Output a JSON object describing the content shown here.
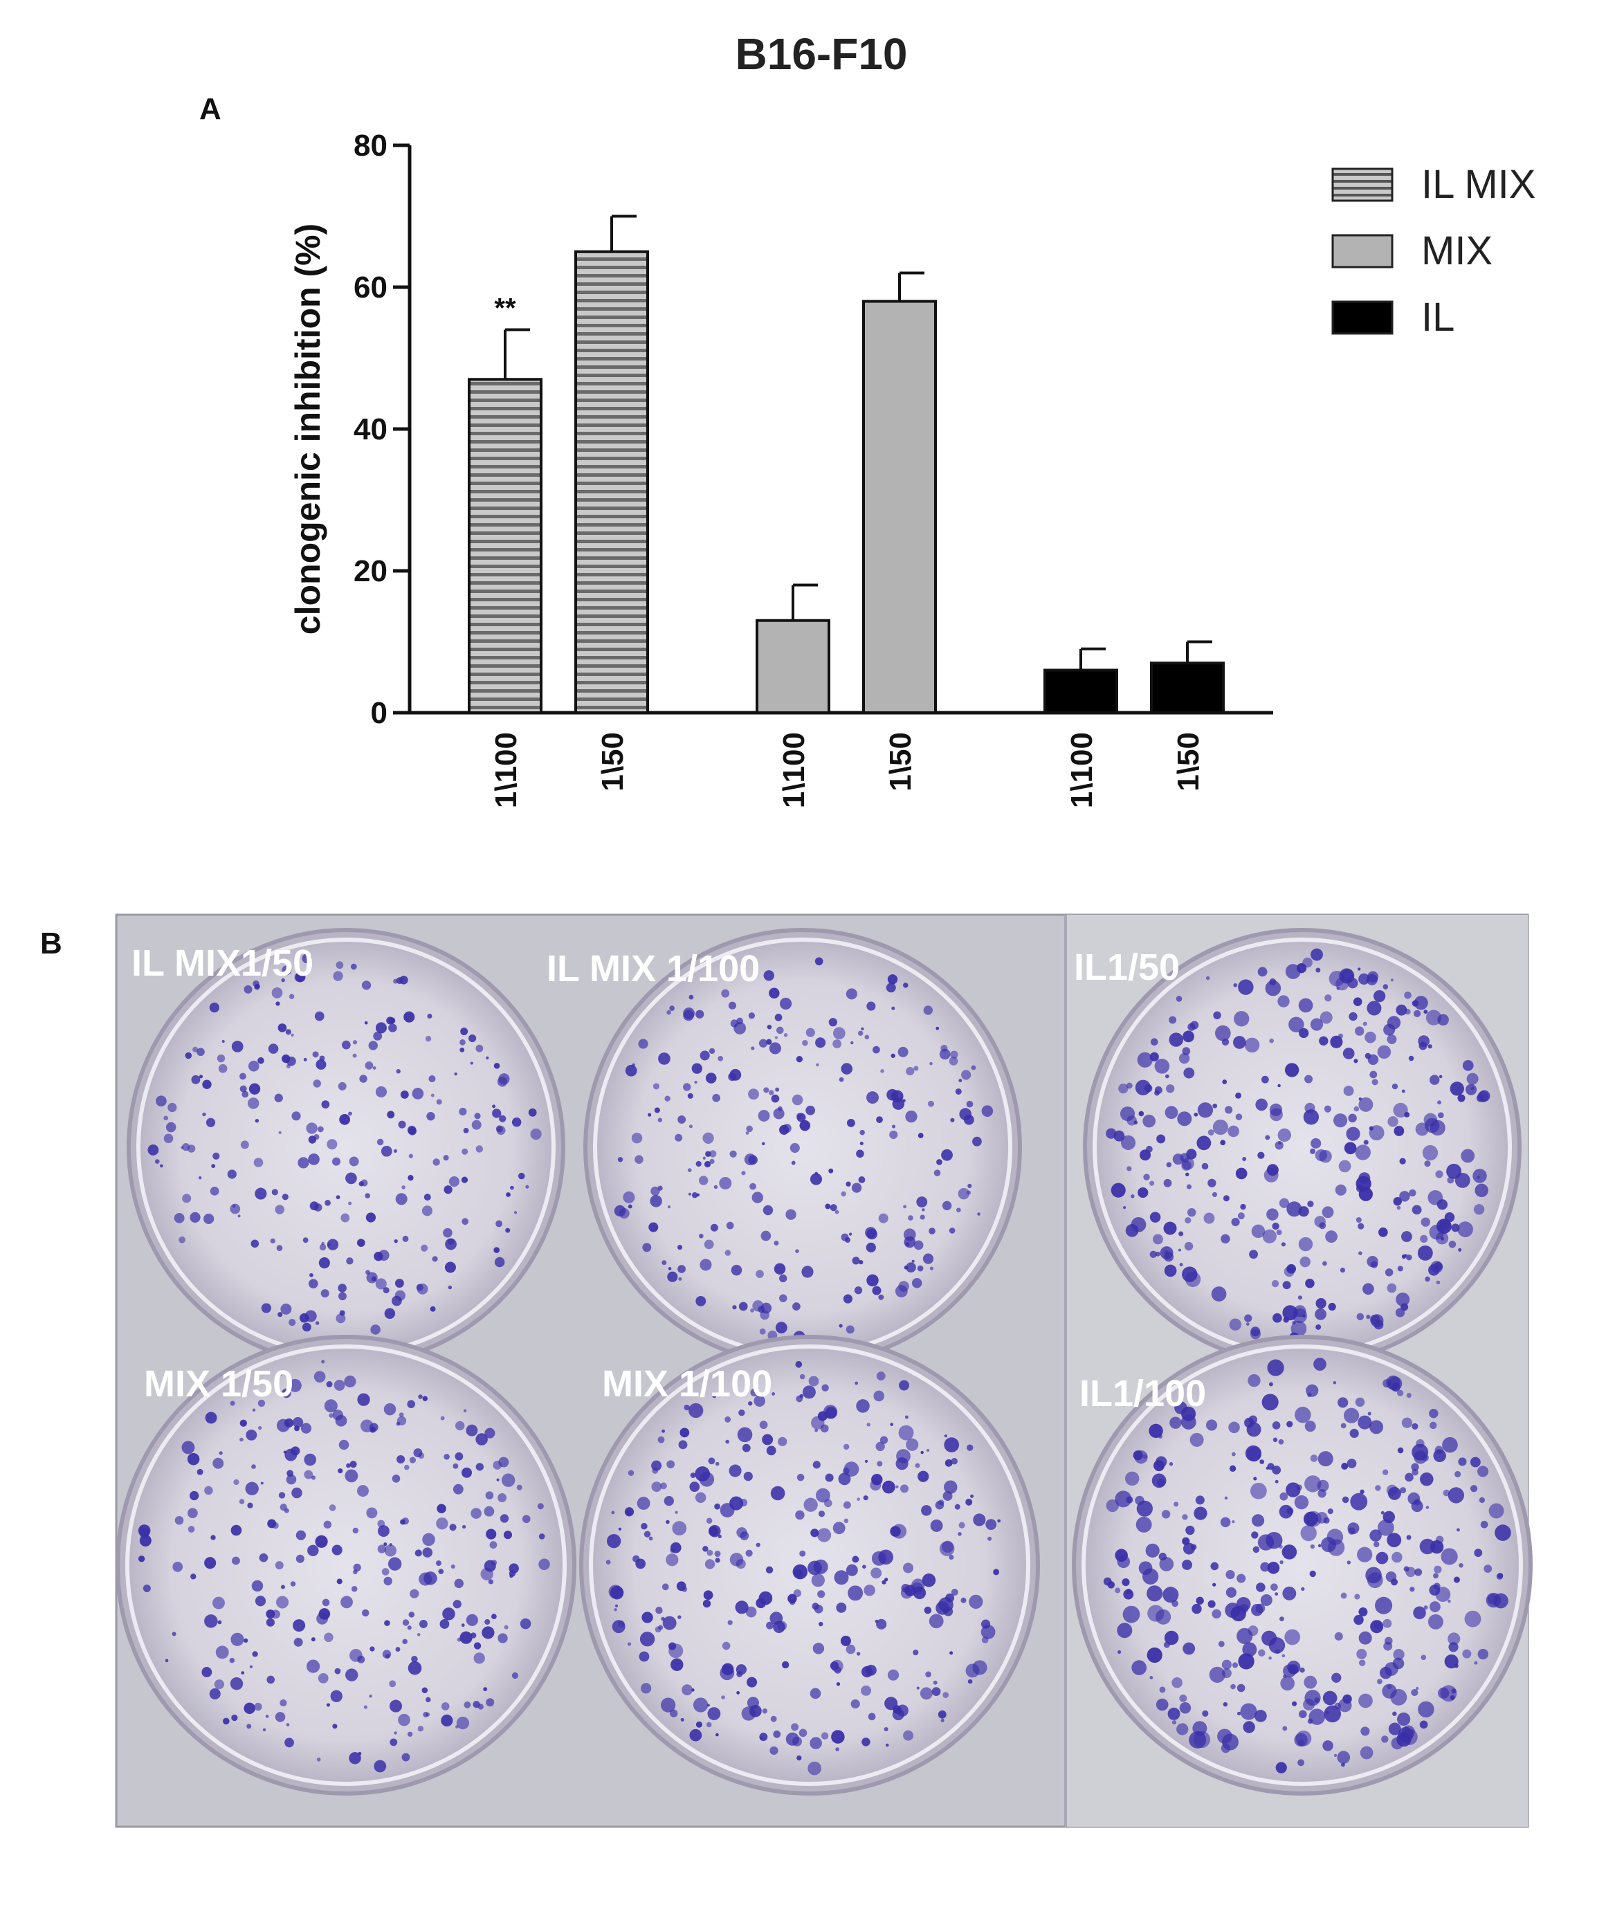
{
  "chart_data": {
    "type": "bar",
    "title": "B16-F10",
    "panel_a": "A",
    "panel_b": "B",
    "ylabel": "clonogenic inhibition (%)",
    "ylim": [
      0,
      80
    ],
    "yticks": [
      0,
      20,
      40,
      60,
      80
    ],
    "legend_placement": "top-right",
    "series": [
      {
        "name": "IL MIX",
        "categories": [
          "1\\100",
          "1\\50"
        ],
        "values": [
          47,
          65
        ],
        "errors": [
          7,
          5
        ],
        "annotations": [
          "**",
          ""
        ],
        "color": "#9a9a9a",
        "pattern": "horizontal-stripes"
      },
      {
        "name": "MIX",
        "categories": [
          "1\\100",
          "1\\50"
        ],
        "values": [
          13,
          58
        ],
        "errors": [
          5,
          4
        ],
        "annotations": [
          "",
          ""
        ],
        "color": "#b3b3b3",
        "pattern": "solid"
      },
      {
        "name": "IL",
        "categories": [
          "1\\100",
          "1\\50"
        ],
        "values": [
          6,
          7
        ],
        "errors": [
          3,
          3
        ],
        "annotations": [
          "",
          ""
        ],
        "color": "#000000",
        "pattern": "solid"
      }
    ],
    "plates": [
      {
        "label": "IL MIX1/50",
        "density": 0.45
      },
      {
        "label": "IL MIX 1/100",
        "density": 0.5
      },
      {
        "label": "IL1/50",
        "density": 0.8
      },
      {
        "label": "MIX 1/50",
        "density": 0.6
      },
      {
        "label": "MIX 1/100",
        "density": 0.75
      },
      {
        "label": "IL1/100",
        "density": 0.95
      }
    ]
  }
}
